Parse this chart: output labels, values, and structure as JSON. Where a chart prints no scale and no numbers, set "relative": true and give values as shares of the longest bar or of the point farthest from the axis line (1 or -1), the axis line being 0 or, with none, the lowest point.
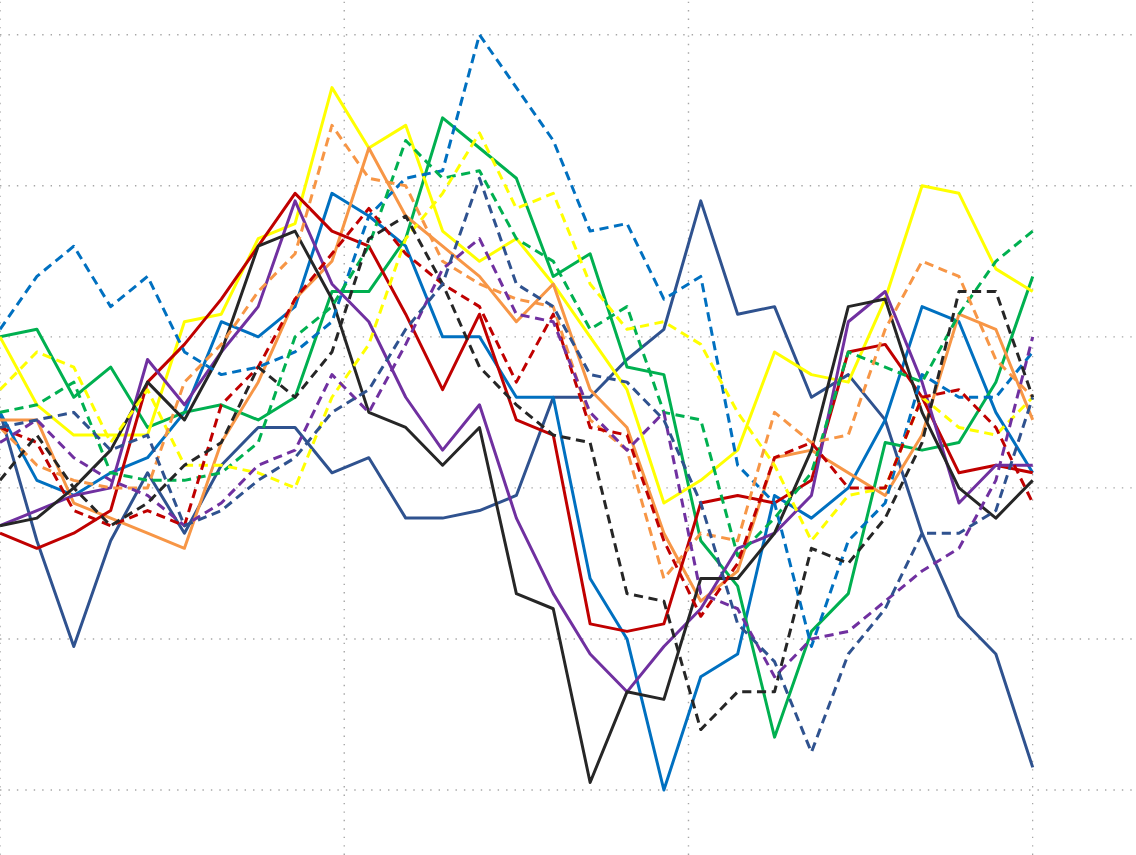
{
  "chart_data": {
    "type": "line",
    "relative": true,
    "grid": true,
    "categories": [
      null,
      null,
      null,
      null,
      null,
      null,
      null,
      null,
      null,
      null,
      null,
      null,
      null,
      null,
      null,
      null,
      null,
      null,
      null,
      null,
      null,
      null,
      null,
      null,
      null,
      null,
      null,
      null,
      null
    ],
    "series": [
      {
        "color": "#2f528f",
        "line_style": "solid",
        "values": [
          0.5,
          0.33,
          0.19,
          0.33,
          0.42,
          0.34,
          0.43,
          0.48,
          0.48,
          0.42,
          0.44,
          0.36,
          0.36,
          0.37,
          0.39,
          0.52,
          0.52,
          0.57,
          0.61,
          0.78,
          0.63,
          0.64,
          0.52,
          0.55,
          0.49,
          0.34,
          0.23,
          0.18,
          0.03
        ]
      },
      {
        "color": "#0070c0",
        "line_style": "solid",
        "values": [
          0.5,
          0.41,
          0.39,
          0.42,
          0.44,
          0.5,
          0.62,
          0.6,
          0.64,
          0.79,
          0.76,
          0.72,
          0.6,
          0.6,
          0.52,
          0.52,
          0.28,
          0.2,
          0.0,
          0.15,
          0.18,
          0.39,
          0.36,
          0.4,
          0.49,
          0.64,
          0.62,
          0.5,
          0.42
        ]
      },
      {
        "color": "#00b050",
        "line_style": "solid",
        "values": [
          0.6,
          0.61,
          0.52,
          0.56,
          0.48,
          0.5,
          0.51,
          0.49,
          0.52,
          0.66,
          0.66,
          0.73,
          0.89,
          0.85,
          0.81,
          0.68,
          0.71,
          0.56,
          0.55,
          0.33,
          0.27,
          0.07,
          0.21,
          0.26,
          0.46,
          0.45,
          0.46,
          0.54,
          0.68
        ]
      },
      {
        "color": "#ffff00",
        "line_style": "solid",
        "values": [
          0.6,
          0.51,
          0.47,
          0.47,
          0.47,
          0.62,
          0.63,
          0.73,
          0.75,
          0.93,
          0.85,
          0.88,
          0.74,
          0.7,
          0.73,
          0.67,
          0.6,
          0.53,
          0.38,
          0.41,
          0.45,
          0.58,
          0.55,
          0.54,
          0.65,
          0.8,
          0.79,
          0.69,
          0.66
        ]
      },
      {
        "color": "#f79646",
        "line_style": "solid",
        "values": [
          0.49,
          0.49,
          0.38,
          0.36,
          0.34,
          0.32,
          0.46,
          0.54,
          0.65,
          0.7,
          0.85,
          0.76,
          0.72,
          0.68,
          0.62,
          0.67,
          0.53,
          0.48,
          0.34,
          0.25,
          0.29,
          0.44,
          0.45,
          0.42,
          0.39,
          0.47,
          0.63,
          0.61,
          0.49
        ]
      },
      {
        "color": "#c00000",
        "line_style": "solid",
        "values": [
          0.34,
          0.32,
          0.34,
          0.37,
          0.54,
          0.59,
          0.65,
          0.72,
          0.79,
          0.74,
          0.72,
          0.63,
          0.53,
          0.63,
          0.49,
          0.47,
          0.22,
          0.21,
          0.22,
          0.38,
          0.39,
          0.38,
          0.41,
          0.58,
          0.59,
          0.52,
          0.42,
          0.43,
          0.42
        ]
      },
      {
        "color": "#7030a0",
        "line_style": "solid",
        "values": [
          0.35,
          0.37,
          0.39,
          0.4,
          0.57,
          0.51,
          0.58,
          0.64,
          0.78,
          0.67,
          0.62,
          0.52,
          0.45,
          0.51,
          0.36,
          0.26,
          0.18,
          0.13,
          0.19,
          0.24,
          0.32,
          0.34,
          0.39,
          0.62,
          0.66,
          0.54,
          0.38,
          0.43,
          0.43
        ]
      },
      {
        "color": "#262626",
        "line_style": "solid",
        "values": [
          0.35,
          0.36,
          0.4,
          0.45,
          0.54,
          0.49,
          0.58,
          0.72,
          0.74,
          0.65,
          0.5,
          0.48,
          0.43,
          0.48,
          0.26,
          0.24,
          0.01,
          0.13,
          0.12,
          0.28,
          0.28,
          0.34,
          0.45,
          0.64,
          0.65,
          0.5,
          0.4,
          0.36,
          0.41
        ]
      },
      {
        "color": "#0070c0",
        "line_style": "dashed",
        "values": [
          0.61,
          0.68,
          0.72,
          0.64,
          0.68,
          0.58,
          0.55,
          0.56,
          0.58,
          0.62,
          0.76,
          0.81,
          0.82,
          1.0,
          0.93,
          0.86,
          0.74,
          0.75,
          0.65,
          0.68,
          0.43,
          0.38,
          0.19,
          0.33,
          0.38,
          0.55,
          0.52,
          0.52,
          0.58
        ]
      },
      {
        "color": "#00b050",
        "line_style": "dashed",
        "values": [
          0.5,
          0.51,
          0.54,
          0.42,
          0.41,
          0.41,
          0.42,
          0.46,
          0.6,
          0.64,
          0.72,
          0.86,
          0.81,
          0.82,
          0.73,
          0.7,
          0.61,
          0.64,
          0.5,
          0.49,
          0.31,
          0.36,
          0.42,
          0.58,
          0.56,
          0.54,
          0.63,
          0.7,
          0.74
        ]
      },
      {
        "color": "#ffff00",
        "line_style": "dashed",
        "values": [
          0.53,
          0.58,
          0.56,
          0.46,
          0.53,
          0.43,
          0.43,
          0.42,
          0.4,
          0.52,
          0.59,
          0.73,
          0.79,
          0.87,
          0.77,
          0.79,
          0.67,
          0.61,
          0.62,
          0.59,
          0.5,
          0.43,
          0.33,
          0.39,
          0.4,
          0.52,
          0.48,
          0.47,
          0.52
        ]
      },
      {
        "color": "#f79646",
        "line_style": "dashed",
        "values": [
          0.48,
          0.43,
          0.41,
          0.4,
          0.4,
          0.54,
          0.59,
          0.66,
          0.71,
          0.88,
          0.81,
          0.8,
          0.7,
          0.67,
          0.65,
          0.64,
          0.49,
          0.45,
          0.28,
          0.34,
          0.33,
          0.5,
          0.46,
          0.47,
          0.61,
          0.7,
          0.68,
          0.57,
          0.52
        ]
      },
      {
        "color": "#c00000",
        "line_style": "dashed",
        "values": [
          0.48,
          0.46,
          0.37,
          0.35,
          0.37,
          0.35,
          0.51,
          0.56,
          0.65,
          0.71,
          0.77,
          0.71,
          0.67,
          0.64,
          0.54,
          0.63,
          0.48,
          0.47,
          0.33,
          0.23,
          0.3,
          0.44,
          0.46,
          0.4,
          0.4,
          0.52,
          0.53,
          0.48,
          0.38
        ]
      },
      {
        "color": "#7030a0",
        "line_style": "dashed",
        "values": [
          0.46,
          0.49,
          0.44,
          0.41,
          0.39,
          0.35,
          0.38,
          0.43,
          0.45,
          0.55,
          0.5,
          0.59,
          0.69,
          0.73,
          0.63,
          0.62,
          0.5,
          0.45,
          0.5,
          0.26,
          0.24,
          0.15,
          0.2,
          0.21,
          0.25,
          0.29,
          0.32,
          0.41,
          0.6
        ]
      },
      {
        "color": "#262626",
        "line_style": "dashed",
        "values": [
          0.41,
          0.47,
          0.4,
          0.35,
          0.38,
          0.43,
          0.46,
          0.56,
          0.52,
          0.58,
          0.73,
          0.76,
          0.67,
          0.56,
          0.51,
          0.47,
          0.46,
          0.26,
          0.25,
          0.08,
          0.13,
          0.13,
          0.32,
          0.3,
          0.36,
          0.46,
          0.66,
          0.66,
          0.52
        ]
      },
      {
        "color": "#2f528f",
        "line_style": "dashed",
        "values": [
          0.48,
          0.49,
          0.5,
          0.45,
          0.47,
          0.35,
          0.37,
          0.41,
          0.44,
          0.5,
          0.53,
          0.61,
          0.67,
          0.81,
          0.67,
          0.64,
          0.55,
          0.54,
          0.49,
          0.38,
          0.22,
          0.17,
          0.05,
          0.18,
          0.24,
          0.34,
          0.34,
          0.37,
          0.52
        ]
      }
    ]
  }
}
